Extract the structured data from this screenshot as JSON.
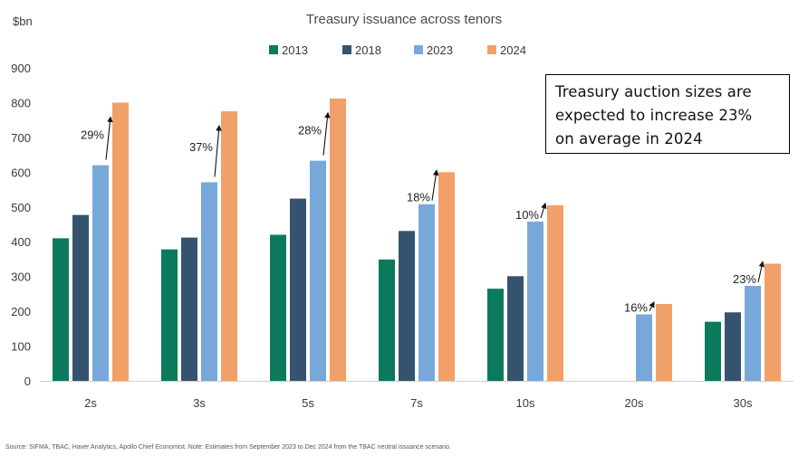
{
  "chart_data": {
    "type": "bar",
    "title": "Treasury issuance across tenors",
    "ylabel": "$bn",
    "ylim": [
      0,
      900
    ],
    "yticks": [
      0,
      100,
      200,
      300,
      400,
      500,
      600,
      700,
      800,
      900
    ],
    "categories": [
      "2s",
      "3s",
      "5s",
      "7s",
      "10s",
      "20s",
      "30s"
    ],
    "series": [
      {
        "name": "2013",
        "color": "#0b7a5c",
        "values": [
          410,
          378,
          420,
          349,
          265,
          null,
          170
        ]
      },
      {
        "name": "2018",
        "color": "#35536f",
        "values": [
          477,
          412,
          524,
          431,
          301,
          null,
          197
        ]
      },
      {
        "name": "2023",
        "color": "#78a8da",
        "values": [
          620,
          571,
          633,
          508,
          458,
          191,
          273
        ]
      },
      {
        "name": "2024",
        "color": "#f1a06a",
        "values": [
          800,
          775,
          812,
          600,
          505,
          221,
          337
        ]
      }
    ],
    "annotations": [
      "29%",
      "37%",
      "28%",
      "18%",
      "10%",
      "16%",
      "23%"
    ],
    "legend_position": "top",
    "grid": false
  },
  "callout": {
    "line1": "Treasury auction sizes are",
    "line2": "expected to increase 23%",
    "line3": "on average in 2024"
  },
  "source": "Source: SIFMA, TBAC, Haver Analytics, Apollo Chief Economist. Note: Estimates from September 2023 to Dec 2024 from the TBAC neutral issuance scenario."
}
